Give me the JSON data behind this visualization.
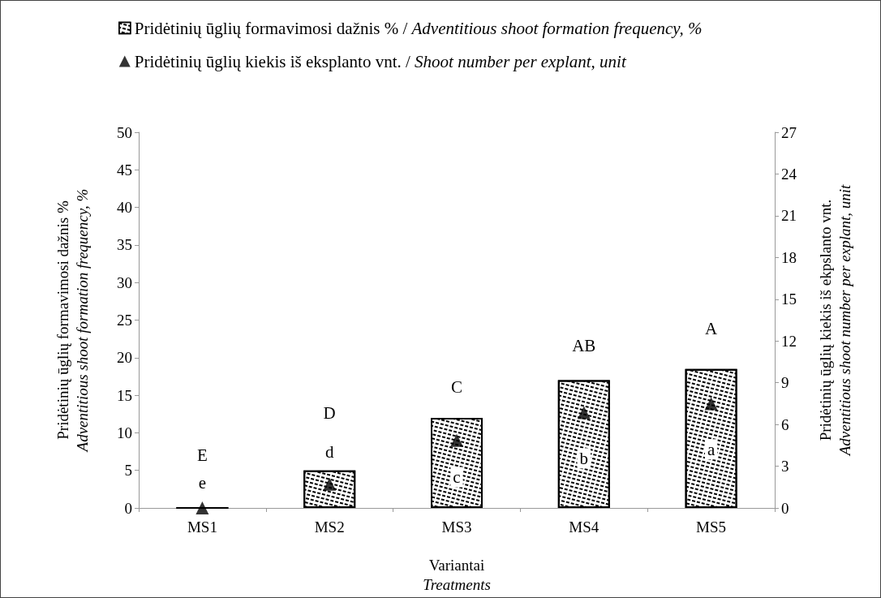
{
  "chart_data": {
    "type": "bar",
    "xlabel": "Variantai\nTreatments",
    "ylabel": "Pridėtinių ūglių formavimosi dažnis %\nAdventitious shoot formation frequency, %",
    "y2label": "Pridėtinių ūglių kiekis iš ekpslanto vnt.\nAdventitious shoot number per explant, unit",
    "categories": [
      "MS1",
      "MS2",
      "MS3",
      "MS4",
      "MS5"
    ],
    "series": [
      {
        "name": "Pridėtinių ūglių formavimosi dažnis % / Adventitious shoot formation frequency, %",
        "color": "#000000",
        "values": [
          0,
          5,
          12,
          17,
          18.5
        ]
      },
      {
        "name": "Pridėtinių ūglių kiekis iš eksplanto vnt. / Shoot number per explant, unit",
        "type": "scatter",
        "axis": "y2",
        "marker": "triangle",
        "color": "#000000",
        "values": [
          0,
          1.7,
          4.85,
          6.85,
          7.5
        ]
      }
    ],
    "ylim": [
      0,
      50
    ],
    "yticks": [
      0,
      5,
      10,
      15,
      20,
      25,
      30,
      35,
      40,
      45,
      50
    ],
    "y2lim": [
      0,
      27
    ],
    "y2ticks": [
      0,
      3,
      6,
      9,
      12,
      15,
      18,
      21,
      24,
      27
    ],
    "grid": false,
    "legend": "top left",
    "annotations": [
      {
        "text": "E",
        "x": "MS1",
        "y": 7
      },
      {
        "text": "e",
        "x": "MS1",
        "y": 3.3
      },
      {
        "text": "D",
        "x": "MS2",
        "y": 12.6
      },
      {
        "text": "d",
        "x": "MS2",
        "y": 7.5
      },
      {
        "text": "C",
        "x": "MS3",
        "y": 16.1
      },
      {
        "text": "c",
        "x": "MS3",
        "y": 4.1
      },
      {
        "text": "AB",
        "x": "MS4",
        "y": 21.6
      },
      {
        "text": "b",
        "x": "MS4",
        "y": 6.6
      },
      {
        "text": "A",
        "x": "MS5",
        "y": 23.9
      },
      {
        "text": "a",
        "x": "MS5",
        "y": 7.8
      }
    ]
  }
}
